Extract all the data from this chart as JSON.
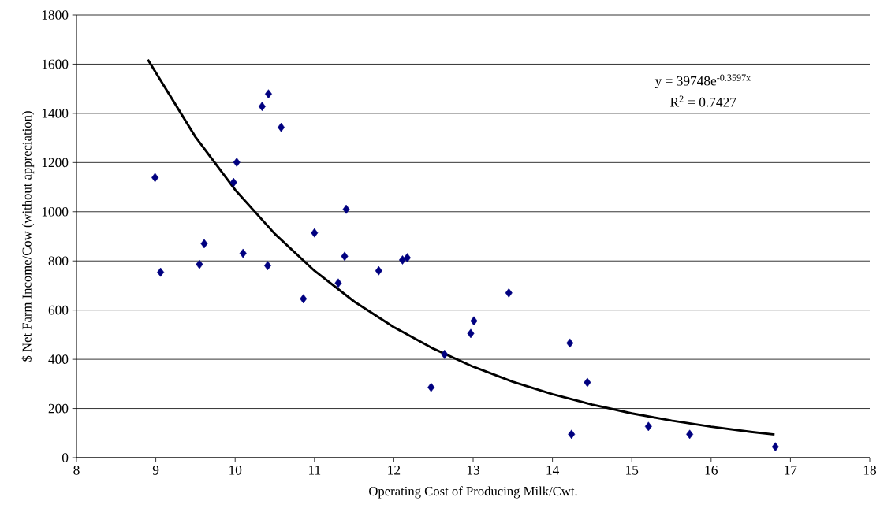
{
  "chart_data": {
    "type": "scatter",
    "xlabel": "Operating Cost of Producing Milk/Cwt.",
    "ylabel": "$ Net Farm Income/Cow (without appreciation)",
    "annotations": [
      "y = 39748e$^{-0.3597x}$",
      "R$^{2}$ = 0.7427"
    ],
    "series": [
      {
        "color": "#000080",
        "marker": "diamond",
        "x": [
          8.99,
          9.06,
          9.55,
          9.61,
          9.98,
          10.02,
          10.1,
          10.34,
          10.42,
          10.41,
          10.58,
          10.86,
          11.0,
          11.3,
          11.38,
          11.4,
          11.81,
          12.11,
          12.17,
          12.47,
          12.64,
          12.97,
          13.01,
          13.45,
          14.22,
          14.24,
          14.44,
          15.21,
          15.73,
          16.81
        ],
        "values": [
          1139,
          754,
          786,
          870,
          1119,
          1201,
          831,
          1428,
          1479,
          781,
          1343,
          646,
          914,
          710,
          819,
          1010,
          760,
          804,
          813,
          286,
          420,
          505,
          556,
          670,
          466,
          95,
          306,
          127,
          95,
          44
        ]
      },
      {
        "type": "line",
        "color": "#000000",
        "marker": "none",
        "x": [
          8.9,
          9.5,
          10,
          10.5,
          11,
          11.5,
          12,
          12.5,
          13,
          13.5,
          14,
          14.5,
          15,
          15.5,
          16,
          16.5,
          16.8
        ],
        "values": [
          1618,
          1304,
          1089,
          910,
          760,
          635,
          531,
          443,
          370,
          309,
          258,
          216,
          180,
          151,
          126,
          105,
          94
        ]
      }
    ],
    "xlim": [
      8,
      18
    ],
    "ylim": [
      0,
      1800
    ],
    "xticks": [
      8,
      9,
      10,
      11,
      12,
      13,
      14,
      15,
      16,
      17,
      18
    ],
    "yticks": [
      0,
      200,
      400,
      600,
      800,
      1000,
      1200,
      1400,
      1600,
      1800
    ],
    "grid": "y"
  }
}
